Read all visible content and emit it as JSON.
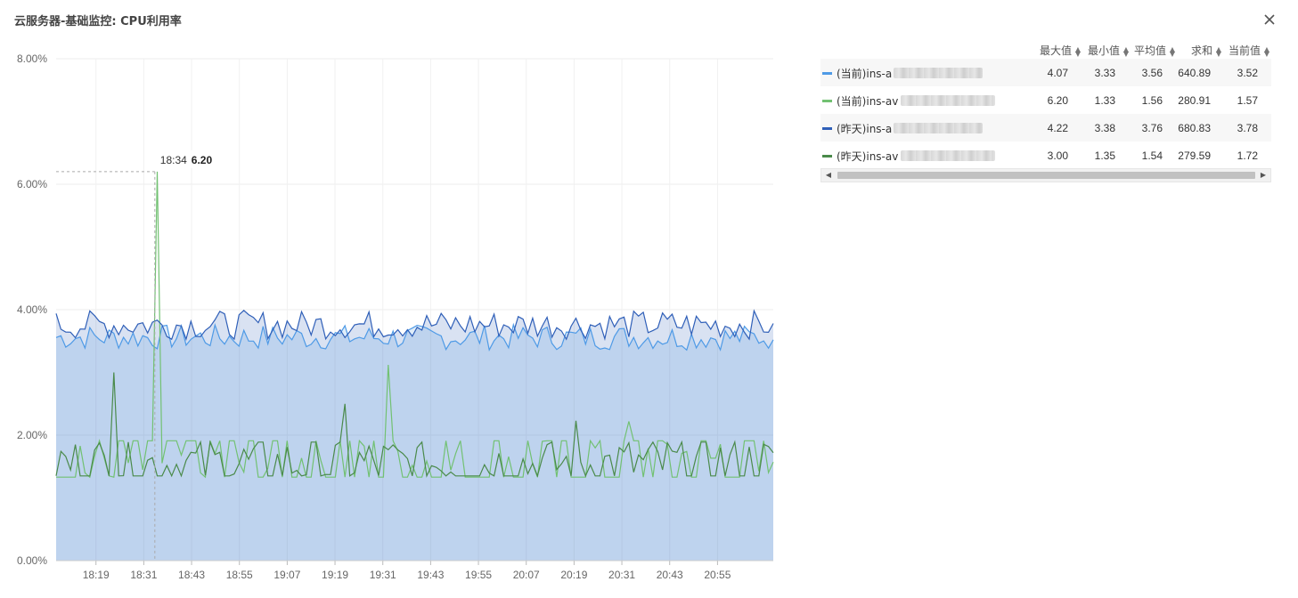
{
  "header": {
    "title": "云服务器-基础监控: CPU利用率"
  },
  "icons": {
    "close": "close-icon",
    "sort": "sort-icon"
  },
  "legend": {
    "columns": [
      "最大值",
      "最小值",
      "平均值",
      "求和",
      "当前值"
    ],
    "rows": [
      {
        "name": "(当前)ins-a",
        "color": "#4e9ae6",
        "max": "4.07",
        "min": "3.33",
        "avg": "3.56",
        "sum": "640.89",
        "current": "3.52"
      },
      {
        "name": "(当前)ins-av",
        "color": "#72c172",
        "max": "6.20",
        "min": "1.33",
        "avg": "1.56",
        "sum": "280.91",
        "current": "1.57"
      },
      {
        "name": "(昨天)ins-a",
        "color": "#2f5fb8",
        "max": "4.22",
        "min": "3.38",
        "avg": "3.76",
        "sum": "680.83",
        "current": "3.78"
      },
      {
        "name": "(昨天)ins-av",
        "color": "#4a8a4a",
        "max": "3.00",
        "min": "1.35",
        "avg": "1.54",
        "sum": "279.59",
        "current": "1.72"
      }
    ]
  },
  "tooltip": {
    "time": "18:34",
    "value": "6.20"
  },
  "chart_data": {
    "type": "line",
    "title": "",
    "xlabel": "",
    "ylabel": "",
    "x_ticks": [
      "18:19",
      "18:31",
      "18:43",
      "18:55",
      "19:07",
      "19:19",
      "19:31",
      "19:43",
      "19:55",
      "20:07",
      "20:19",
      "20:31",
      "20:43",
      "20:55"
    ],
    "y_ticks": [
      "0.00%",
      "2.00%",
      "4.00%",
      "6.00%",
      "8.00%"
    ],
    "ylim": [
      0,
      8
    ],
    "x_range": [
      "18:09",
      "21:09"
    ],
    "grid": true,
    "legend_position": "right",
    "series": [
      {
        "name": "(当前)ins-a",
        "color": "#4e9ae6",
        "fill": true,
        "approx_range": [
          3.33,
          4.07
        ],
        "mean": 3.56,
        "current": 3.52,
        "spikes": []
      },
      {
        "name": "(当前)ins-av",
        "color": "#72c172",
        "fill": false,
        "approx_range": [
          1.33,
          6.2
        ],
        "mean": 1.56,
        "current": 1.57,
        "spikes": [
          {
            "x": "18:34",
            "y": 6.2
          },
          {
            "x": "19:32",
            "y": 3.12
          },
          {
            "x": "20:33",
            "y": 2.22
          }
        ]
      },
      {
        "name": "(昨天)ins-a",
        "color": "#2f5fb8",
        "fill": true,
        "approx_range": [
          3.38,
          4.22
        ],
        "mean": 3.76,
        "current": 3.78,
        "spikes": []
      },
      {
        "name": "(昨天)ins-av",
        "color": "#4a8a4a",
        "fill": false,
        "approx_range": [
          1.35,
          3.0
        ],
        "mean": 1.54,
        "current": 1.72,
        "spikes": [
          {
            "x": "18:23",
            "y": 3.0
          },
          {
            "x": "19:22",
            "y": 2.5
          },
          {
            "x": "20:20",
            "y": 2.23
          }
        ]
      }
    ]
  }
}
